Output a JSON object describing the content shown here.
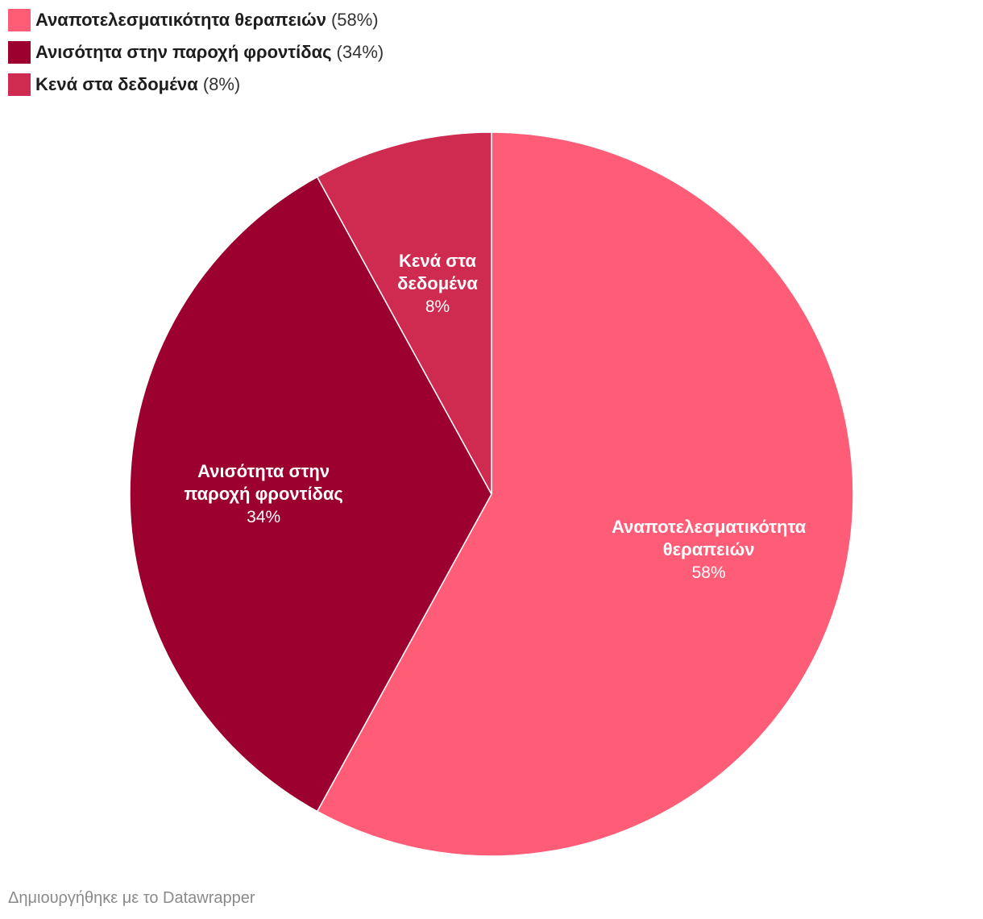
{
  "chart_data": {
    "type": "pie",
    "legend_position": "top-left",
    "slices": [
      {
        "name": "Αναποτελεσματικότητα θεραπειών",
        "label_lines": [
          "Αναποτελεσματικότητα",
          "θεραπειών"
        ],
        "value": 58,
        "value_label": "58%",
        "legend_value": "(58%)",
        "color": "#ff5c77"
      },
      {
        "name": "Ανισότητα στην παροχή φροντίδας",
        "label_lines": [
          "Ανισότητα στην",
          "παροχή φροντίδας"
        ],
        "value": 34,
        "value_label": "34%",
        "legend_value": "(34%)",
        "color": "#9b002e"
      },
      {
        "name": "Κενά στα δεδομένα",
        "label_lines": [
          "Κενά στα",
          "δεδομένα"
        ],
        "value": 8,
        "value_label": "8%",
        "legend_value": "(8%)",
        "color": "#cf2a50"
      }
    ]
  },
  "footer": {
    "credit": "Δημιουργήθηκε με το Datawrapper"
  }
}
